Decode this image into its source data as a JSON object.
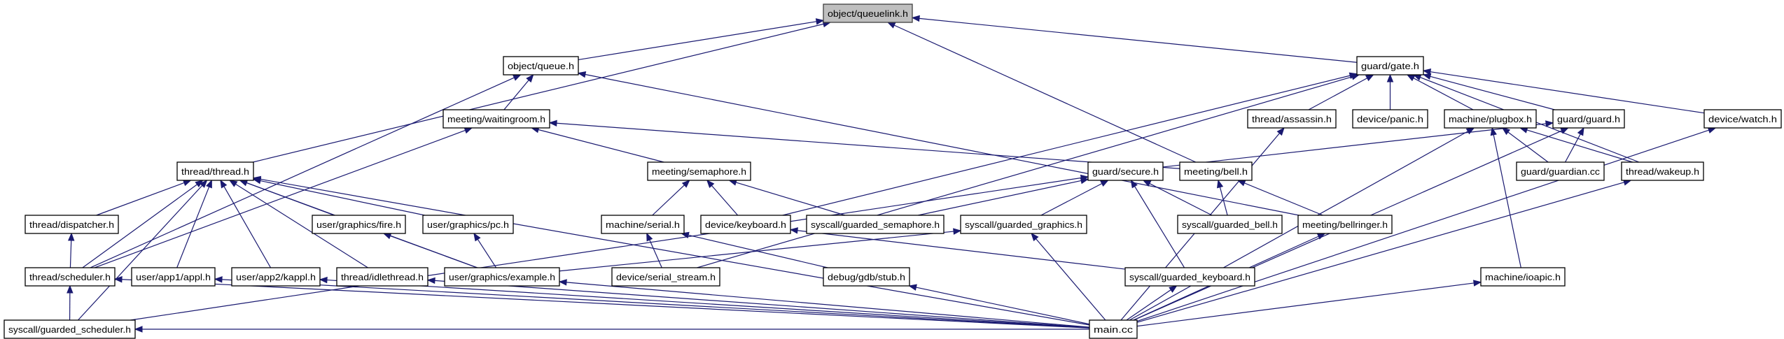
{
  "graph": {
    "edge_color": "#191970",
    "highlight_fill": "#bfbfbf",
    "nodes": [
      {
        "id": "queuelink",
        "label": "object/queuelink.h",
        "highlighted": true
      },
      {
        "id": "queue",
        "label": "object/queue.h"
      },
      {
        "id": "gate",
        "label": "guard/gate.h"
      },
      {
        "id": "waitingroom",
        "label": "meeting/waitingroom.h"
      },
      {
        "id": "assassin",
        "label": "thread/assassin.h"
      },
      {
        "id": "panic",
        "label": "device/panic.h"
      },
      {
        "id": "plugbox",
        "label": "machine/plugbox.h"
      },
      {
        "id": "guard",
        "label": "guard/guard.h"
      },
      {
        "id": "watch",
        "label": "device/watch.h"
      },
      {
        "id": "thread",
        "label": "thread/thread.h"
      },
      {
        "id": "semaphore",
        "label": "meeting/semaphore.h"
      },
      {
        "id": "secure",
        "label": "guard/secure.h"
      },
      {
        "id": "bell",
        "label": "meeting/bell.h"
      },
      {
        "id": "guardian",
        "label": "guard/guardian.cc"
      },
      {
        "id": "wakeup",
        "label": "thread/wakeup.h"
      },
      {
        "id": "dispatcher",
        "label": "thread/dispatcher.h"
      },
      {
        "id": "fire",
        "label": "user/graphics/fire.h"
      },
      {
        "id": "pc",
        "label": "user/graphics/pc.h"
      },
      {
        "id": "serial",
        "label": "machine/serial.h"
      },
      {
        "id": "keyboard",
        "label": "device/keyboard.h"
      },
      {
        "id": "gsem",
        "label": "syscall/guarded_semaphore.h"
      },
      {
        "id": "ggfx",
        "label": "syscall/guarded_graphics.h"
      },
      {
        "id": "gbell",
        "label": "syscall/guarded_bell.h"
      },
      {
        "id": "bellringer",
        "label": "meeting/bellringer.h"
      },
      {
        "id": "scheduler",
        "label": "thread/scheduler.h"
      },
      {
        "id": "appl",
        "label": "user/app1/appl.h"
      },
      {
        "id": "kappl",
        "label": "user/app2/kappl.h"
      },
      {
        "id": "idle",
        "label": "thread/idlethread.h"
      },
      {
        "id": "example",
        "label": "user/graphics/example.h"
      },
      {
        "id": "sstream",
        "label": "device/serial_stream.h"
      },
      {
        "id": "stub",
        "label": "debug/gdb/stub.h"
      },
      {
        "id": "gkbd",
        "label": "syscall/guarded_keyboard.h"
      },
      {
        "id": "ioapic",
        "label": "machine/ioapic.h"
      },
      {
        "id": "gsched",
        "label": "syscall/guarded_scheduler.h"
      },
      {
        "id": "main",
        "label": "main.cc"
      }
    ],
    "edges": [
      [
        "queue",
        "queuelink"
      ],
      [
        "thread",
        "queuelink"
      ],
      [
        "gate",
        "queuelink"
      ],
      [
        "bell",
        "queuelink"
      ],
      [
        "waitingroom",
        "queue"
      ],
      [
        "scheduler",
        "queue"
      ],
      [
        "bellringer",
        "queue"
      ],
      [
        "sstream",
        "gate"
      ],
      [
        "keyboard",
        "gate"
      ],
      [
        "assassin",
        "gate"
      ],
      [
        "panic",
        "gate"
      ],
      [
        "plugbox",
        "gate"
      ],
      [
        "guard",
        "gate"
      ],
      [
        "wakeup",
        "gate"
      ],
      [
        "watch",
        "gate"
      ],
      [
        "secure",
        "guard"
      ],
      [
        "guardian",
        "guard"
      ],
      [
        "main",
        "guard"
      ],
      [
        "guardian",
        "plugbox"
      ],
      [
        "wakeup",
        "plugbox"
      ],
      [
        "ioapic",
        "plugbox"
      ],
      [
        "main",
        "plugbox"
      ],
      [
        "main",
        "assassin"
      ],
      [
        "main",
        "watch"
      ],
      [
        "main",
        "wakeup"
      ],
      [
        "main",
        "ioapic"
      ],
      [
        "main",
        "bellringer"
      ],
      [
        "bellringer",
        "bell"
      ],
      [
        "gbell",
        "bell"
      ],
      [
        "semaphore",
        "waitingroom"
      ],
      [
        "bell",
        "waitingroom"
      ],
      [
        "scheduler",
        "waitingroom"
      ],
      [
        "dispatcher",
        "thread"
      ],
      [
        "scheduler",
        "thread"
      ],
      [
        "appl",
        "thread"
      ],
      [
        "kappl",
        "thread"
      ],
      [
        "idle",
        "thread"
      ],
      [
        "example",
        "thread"
      ],
      [
        "fire",
        "thread"
      ],
      [
        "pc",
        "thread"
      ],
      [
        "main",
        "thread"
      ],
      [
        "gsched",
        "thread"
      ],
      [
        "scheduler",
        "dispatcher"
      ],
      [
        "gsched",
        "scheduler"
      ],
      [
        "main",
        "scheduler"
      ],
      [
        "main",
        "appl"
      ],
      [
        "main",
        "kappl"
      ],
      [
        "main",
        "idle"
      ],
      [
        "main",
        "example"
      ],
      [
        "example",
        "fire"
      ],
      [
        "example",
        "pc"
      ],
      [
        "example",
        "ggfx"
      ],
      [
        "serial",
        "semaphore"
      ],
      [
        "keyboard",
        "semaphore"
      ],
      [
        "gsem",
        "semaphore"
      ],
      [
        "sstream",
        "serial"
      ],
      [
        "stub",
        "serial"
      ],
      [
        "gkbd",
        "keyboard"
      ],
      [
        "gsem",
        "secure"
      ],
      [
        "ggfx",
        "secure"
      ],
      [
        "gkbd",
        "secure"
      ],
      [
        "gbell",
        "secure"
      ],
      [
        "gsched",
        "secure"
      ],
      [
        "main",
        "ggfx"
      ],
      [
        "main",
        "stub"
      ],
      [
        "main",
        "gkbd"
      ],
      [
        "main",
        "gsched"
      ]
    ]
  }
}
